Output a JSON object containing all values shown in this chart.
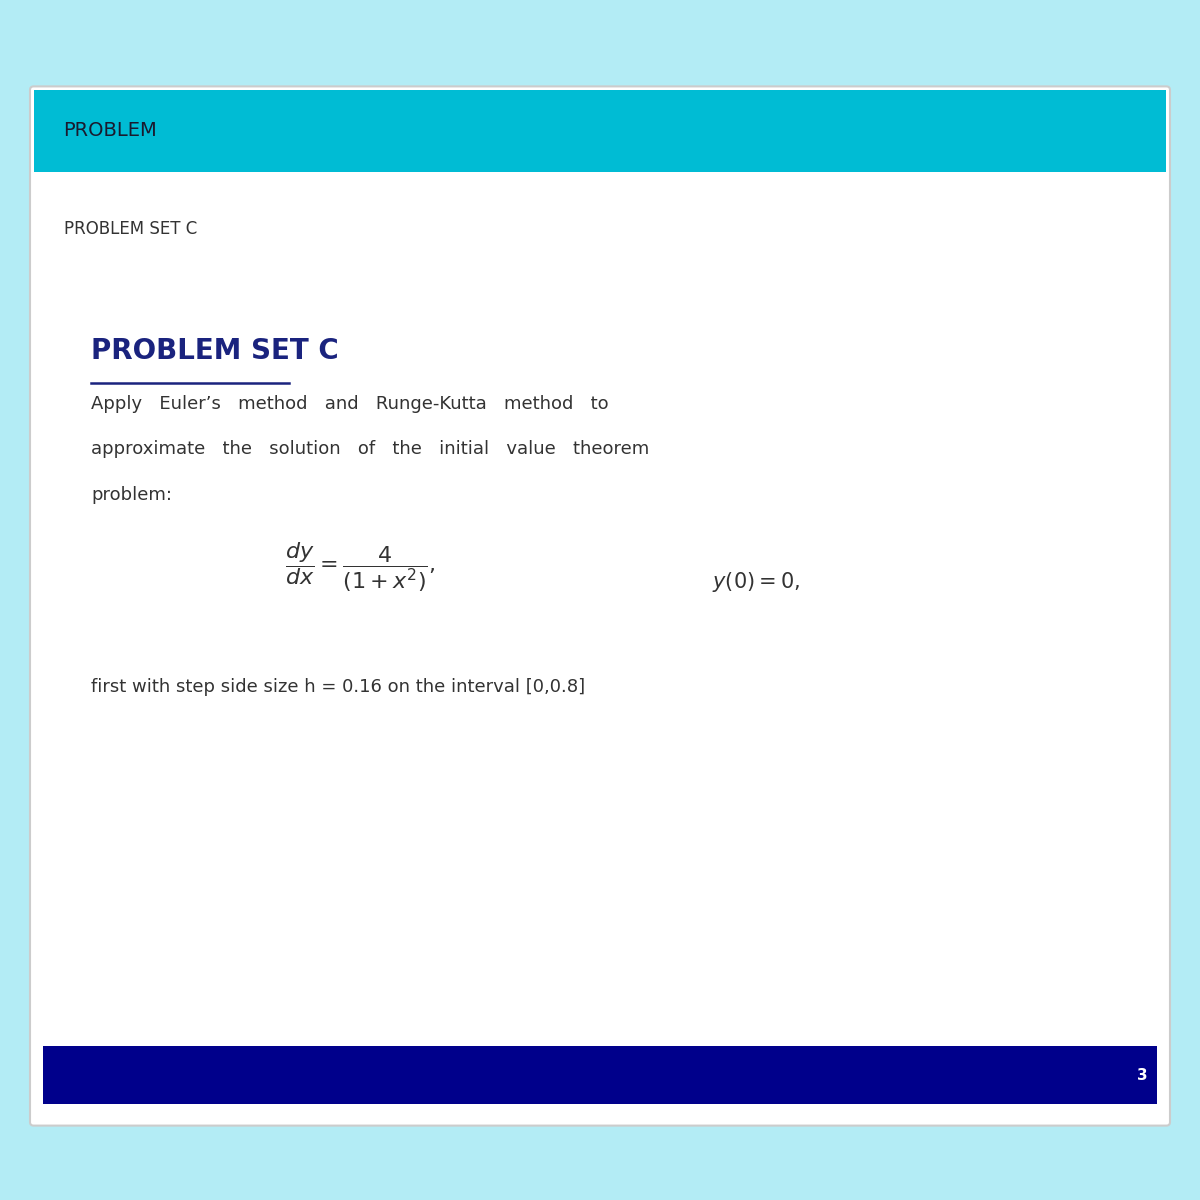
{
  "outer_bg_color": "#b3ecf5",
  "slide_bg_color": "#ffffff",
  "slide_border_color": "#cccccc",
  "header_bg_color": "#00bcd4",
  "header_text": "PROBLEM",
  "header_text_color": "#1a1a2e",
  "header_font_size": 14,
  "subheader_text": "PROBLEM SET C",
  "subheader_text_color": "#333333",
  "subheader_font_size": 12,
  "title_text": "PROBLEM SET C",
  "title_text_color": "#1a237e",
  "title_font_size": 20,
  "title_underline_color": "#1a237e",
  "body_text_color": "#333333",
  "body_font_size": 13,
  "body_line1": "Apply   Euler’s   method   and   Runge-Kutta   method   to",
  "body_line2": "approximate   the   solution   of   the   initial   value   theorem",
  "body_line3": "problem:",
  "footer_bg_color": "#00008b",
  "footer_text": "3",
  "footer_text_color": "#ffffff",
  "footer_font_size": 11,
  "step_text": "first with step side size h = 0.16 on the interval [0,0.8]",
  "step_text_color": "#333333",
  "step_font_size": 13,
  "formula_font_size": 16,
  "ic_font_size": 15
}
